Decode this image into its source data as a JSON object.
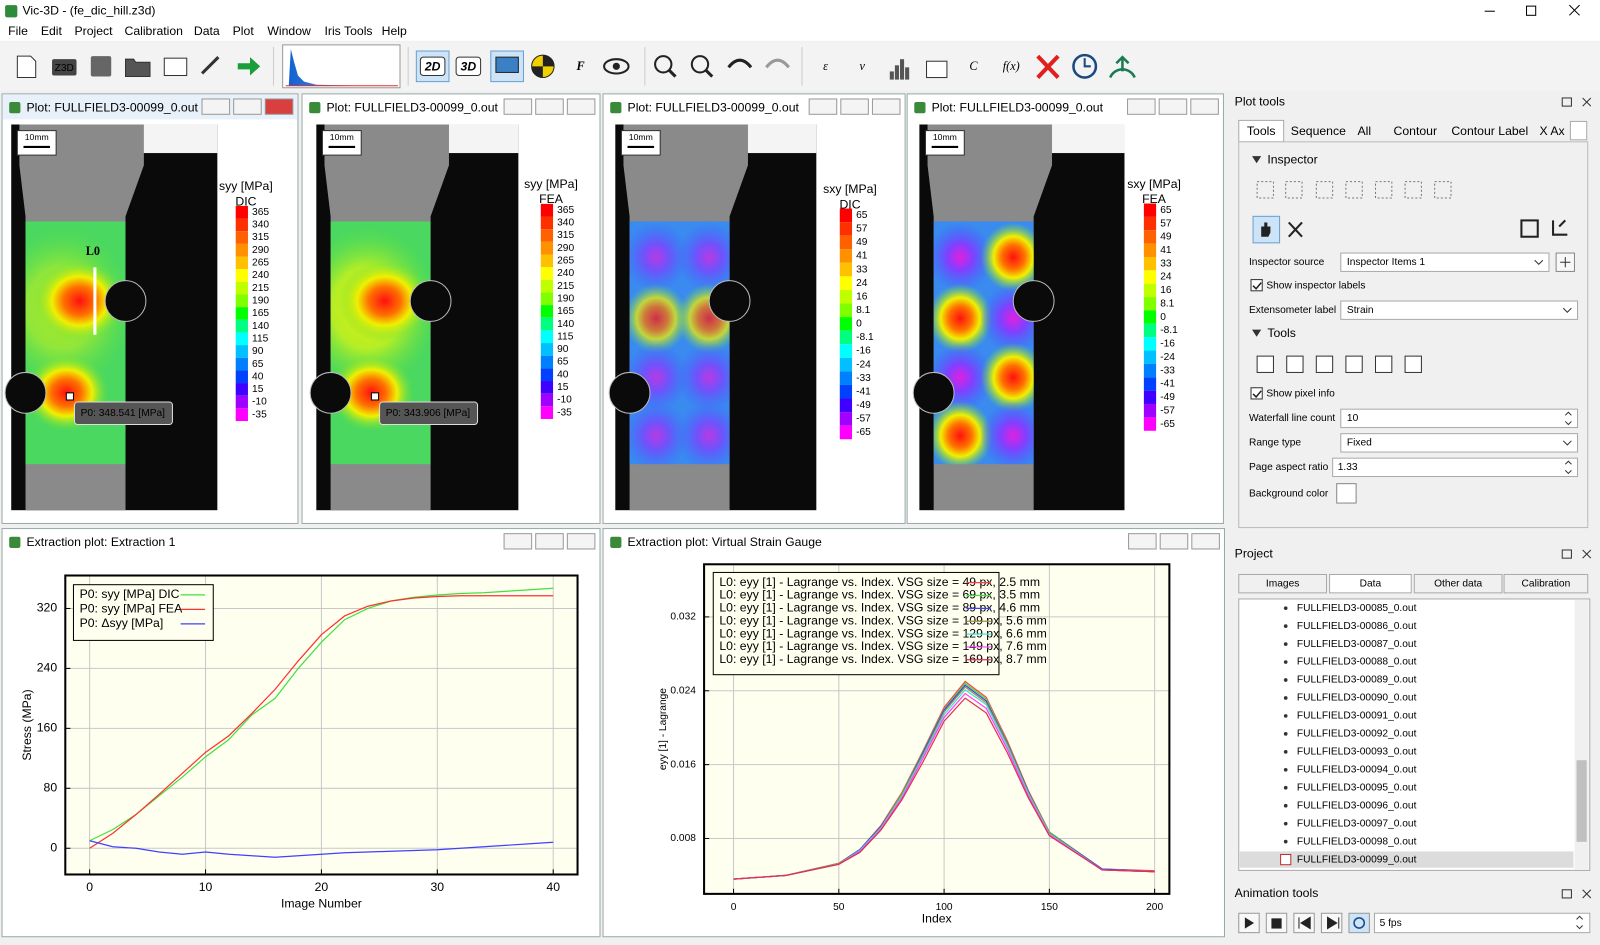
{
  "window": {
    "title": "Vic-3D - (fe_dic_hill.z3d)"
  },
  "menu": [
    "File",
    "Edit",
    "Project",
    "Calibration",
    "Data",
    "Plot",
    "Window",
    "Iris Tools",
    "Help"
  ],
  "toolbar": {
    "z3d": "Z3D",
    "view_2d": "2D",
    "view_3d": "3D",
    "f_button": "F",
    "epsilon": "ε",
    "nu": "ν",
    "c_button": "C",
    "fx": "f(x)"
  },
  "contour_plots": [
    {
      "title": "Plot: FULLFIELD3-00099_0.out",
      "scale_bar": "10mm",
      "legend_title": [
        "syy [MPa]",
        "DIC"
      ],
      "colorbar_ticks": [
        365,
        340,
        315,
        290,
        265,
        240,
        215,
        190,
        165,
        140,
        115,
        90,
        65,
        40,
        15,
        -10,
        -35
      ],
      "extensometer": "L0",
      "inspector_label": "P0: 348.541 [MPa]"
    },
    {
      "title": "Plot: FULLFIELD3-00099_0.out",
      "scale_bar": "10mm",
      "legend_title": [
        "syy [MPa]",
        "FEA"
      ],
      "colorbar_ticks": [
        365,
        340,
        315,
        290,
        265,
        240,
        215,
        190,
        165,
        140,
        115,
        90,
        65,
        40,
        15,
        -10,
        -35
      ],
      "inspector_label": "P0: 343.906 [MPa]"
    },
    {
      "title": "Plot: FULLFIELD3-00099_0.out",
      "scale_bar": "10mm",
      "legend_title": [
        "sxy [MPa]",
        "DIC"
      ],
      "colorbar_ticks": [
        65,
        57,
        49,
        41,
        33,
        24,
        16,
        8.1,
        0,
        -8.1,
        -16,
        -24,
        -33,
        -41,
        -49,
        -57,
        -65
      ]
    },
    {
      "title": "Plot: FULLFIELD3-00099_0.out",
      "scale_bar": "10mm",
      "legend_title": [
        "sxy [MPa]",
        "FEA"
      ],
      "colorbar_ticks": [
        65,
        57,
        49,
        41,
        33,
        24,
        16,
        8.1,
        0,
        -8.1,
        -16,
        -24,
        -33,
        -41,
        -49,
        -57,
        -65
      ]
    }
  ],
  "extraction_plot": {
    "type": "line",
    "title": "Extraction plot: Extraction 1",
    "x_label": "Image Number",
    "y_label": "Stress (MPa)",
    "x": [
      0,
      2,
      4,
      6,
      8,
      10,
      12,
      14,
      16,
      18,
      20,
      22,
      24,
      26,
      28,
      30,
      32,
      34,
      36,
      38,
      40
    ],
    "series": [
      {
        "name": "P0: syy [MPa] DIC",
        "color": "#40e040",
        "values": [
          10,
          25,
          45,
          70,
          95,
          122,
          145,
          178,
          200,
          240,
          275,
          305,
          320,
          330,
          335,
          338,
          340,
          341,
          343,
          345,
          347
        ]
      },
      {
        "name": "P0: syy [MPa] FEA",
        "color": "#ff3030",
        "values": [
          0,
          20,
          45,
          72,
          100,
          128,
          150,
          180,
          212,
          250,
          285,
          310,
          323,
          330,
          334,
          336,
          337,
          337,
          337,
          337,
          337
        ]
      },
      {
        "name": "P0: Δsyy [MPa]",
        "color": "#4040ff",
        "values": [
          10,
          2,
          0,
          -5,
          -8,
          -5,
          -8,
          -10,
          -12,
          -10,
          -8,
          -6,
          -5,
          -4,
          -3,
          -2,
          0,
          2,
          4,
          6,
          8
        ]
      }
    ],
    "xlim": [
      -2.1,
      42.1
    ],
    "ylim": [
      -35,
      364
    ],
    "xticks": [
      0,
      10,
      20,
      30,
      40
    ],
    "yticks": [
      0,
      80,
      160,
      240,
      320
    ],
    "grid": true,
    "legend": "upper-left"
  },
  "vsg_plot": {
    "type": "line",
    "title": "Extraction plot: Virtual Strain Gauge",
    "x_label": "Index",
    "y_label": "eyy [1] - Lagrange",
    "x": [
      0,
      25,
      50,
      60,
      70,
      80,
      90,
      100,
      110,
      120,
      130,
      140,
      150,
      175,
      200
    ],
    "series": [
      {
        "name": "L0: eyy [1] - Lagrange vs. Index. VSG size = 49 px, 2.5 mm",
        "color": "#ff4040",
        "values": [
          0.0036,
          0.004,
          0.0053,
          0.0068,
          0.0094,
          0.013,
          0.0175,
          0.0222,
          0.025,
          0.0233,
          0.0186,
          0.0132,
          0.0087,
          0.0047,
          0.0045
        ]
      },
      {
        "name": "L0: eyy [1] - Lagrange vs. Index. VSG size = 69 px, 3.5 mm",
        "color": "#40e040",
        "values": [
          0.0036,
          0.004,
          0.0053,
          0.0068,
          0.0093,
          0.0129,
          0.0174,
          0.022,
          0.0248,
          0.0231,
          0.0184,
          0.0131,
          0.0087,
          0.0047,
          0.0044
        ]
      },
      {
        "name": "L0: eyy [1] - Lagrange vs. Index. VSG size = 89 px, 4.6 mm",
        "color": "#4040ff",
        "values": [
          0.0036,
          0.004,
          0.0053,
          0.0068,
          0.0093,
          0.0128,
          0.0173,
          0.0219,
          0.0246,
          0.0229,
          0.0183,
          0.0131,
          0.0086,
          0.0047,
          0.0044
        ]
      },
      {
        "name": "L0: eyy [1] - Lagrange vs. Index. VSG size = 109 px, 5.6 mm",
        "color": "#a09040",
        "values": [
          0.0036,
          0.004,
          0.0053,
          0.0067,
          0.0092,
          0.0128,
          0.0171,
          0.0217,
          0.0244,
          0.0227,
          0.0182,
          0.013,
          0.0086,
          0.0046,
          0.0044
        ]
      },
      {
        "name": "L0: eyy [1] - Lagrange vs. Index. VSG size = 129 px, 6.6 mm",
        "color": "#40e0e0",
        "values": [
          0.0036,
          0.004,
          0.0052,
          0.0067,
          0.0091,
          0.0126,
          0.0169,
          0.0214,
          0.0241,
          0.0225,
          0.018,
          0.0128,
          0.0085,
          0.0046,
          0.0044
        ]
      },
      {
        "name": "L0: eyy [1] - Lagrange vs. Index. VSG size = 149 px, 7.6 mm",
        "color": "#ff40ff",
        "values": [
          0.0036,
          0.004,
          0.0052,
          0.0066,
          0.009,
          0.0124,
          0.0167,
          0.0211,
          0.0237,
          0.0221,
          0.0177,
          0.0126,
          0.0084,
          0.0046,
          0.0044
        ]
      },
      {
        "name": "L0: eyy [1] - Lagrange vs. Index. VSG size = 169 px, 8.7 mm",
        "color": "#e03050",
        "values": [
          0.0036,
          0.004,
          0.0052,
          0.0065,
          0.0089,
          0.0122,
          0.0163,
          0.0207,
          0.0232,
          0.0216,
          0.0173,
          0.0124,
          0.0083,
          0.0046,
          0.0044
        ]
      }
    ],
    "xlim": [
      -14,
      207
    ],
    "ylim": [
      0.002,
      0.0377
    ],
    "xticks": [
      0,
      50,
      100,
      150,
      200
    ],
    "yticks": [
      0.008,
      0.016,
      0.024,
      0.032
    ],
    "grid": true,
    "legend": "upper-left"
  },
  "plot_tools": {
    "title": "Plot tools",
    "tabs": [
      "Tools",
      "Sequence",
      "All",
      "Contour",
      "Contour Label",
      "X Ax"
    ],
    "inspector_section": "Inspector",
    "inspector_source_label": "Inspector source",
    "inspector_source": "Inspector Items 1",
    "show_inspector_labels": "Show inspector labels",
    "extensometer_label_label": "Extensometer label",
    "extensometer_label": "Strain",
    "tools_section": "Tools",
    "show_pixel_info": "Show pixel info",
    "waterfall_label": "Waterfall line count",
    "waterfall": "10",
    "range_type_label": "Range type",
    "range_type": "Fixed",
    "aspect_label": "Page aspect ratio",
    "aspect": "1.33",
    "background_label": "Background color"
  },
  "project": {
    "title": "Project",
    "tabs": [
      "Images",
      "Data",
      "Other data",
      "Calibration"
    ],
    "items": [
      "FULLFIELD3-00085_0.out",
      "FULLFIELD3-00086_0.out",
      "FULLFIELD3-00087_0.out",
      "FULLFIELD3-00088_0.out",
      "FULLFIELD3-00089_0.out",
      "FULLFIELD3-00090_0.out",
      "FULLFIELD3-00091_0.out",
      "FULLFIELD3-00092_0.out",
      "FULLFIELD3-00093_0.out",
      "FULLFIELD3-00094_0.out",
      "FULLFIELD3-00095_0.out",
      "FULLFIELD3-00096_0.out",
      "FULLFIELD3-00097_0.out",
      "FULLFIELD3-00098_0.out",
      "FULLFIELD3-00099_0.out"
    ]
  },
  "animation_tools": {
    "title": "Animation tools",
    "fps": "5 fps"
  }
}
